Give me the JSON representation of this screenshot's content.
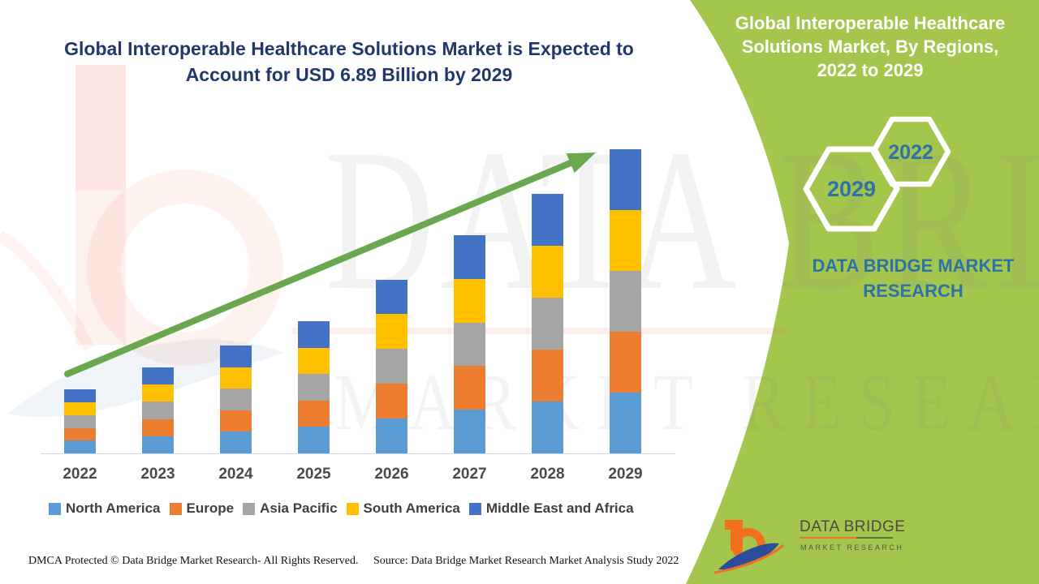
{
  "header": {
    "title_lines": [
      "Global Interoperable Healthcare Solutions Market is Expected to",
      "Account for USD 6.89 Billion by 2029"
    ]
  },
  "right_panel": {
    "title_lines": [
      "Global Interoperable Healthcare",
      "Solutions Market, By Regions,",
      "2022 to 2029"
    ],
    "hexagons": {
      "back_year": "2022",
      "front_year": "2029"
    },
    "brand_text": "DATA BRIDGE MARKET RESEARCH",
    "panel_color": "#a4c64c",
    "hex_text_color": "#2d73a8"
  },
  "watermark": {
    "line1": "DATA BRIDGE",
    "line2": "MARKET RESEARCH"
  },
  "chart_data": {
    "type": "bar",
    "stacked": true,
    "title": "Global Interoperable Healthcare Solutions Market is Expected to Account for USD 6.89 Billion by 2029",
    "unit": "USD Billion",
    "categories": [
      "2022",
      "2023",
      "2024",
      "2025",
      "2026",
      "2027",
      "2028",
      "2029"
    ],
    "series": [
      {
        "name": "North America",
        "color": "#5B9BD5",
        "values": [
          0.29,
          0.39,
          0.49,
          0.6,
          0.79,
          0.99,
          1.18,
          1.38
        ]
      },
      {
        "name": "Europe",
        "color": "#ED7D31",
        "values": [
          0.29,
          0.39,
          0.49,
          0.6,
          0.79,
          0.99,
          1.18,
          1.38
        ]
      },
      {
        "name": "Asia Pacific",
        "color": "#A5A5A5",
        "values": [
          0.29,
          0.39,
          0.49,
          0.6,
          0.79,
          0.99,
          1.18,
          1.38
        ]
      },
      {
        "name": "South America",
        "color": "#FFC000",
        "values": [
          0.29,
          0.39,
          0.49,
          0.6,
          0.79,
          0.99,
          1.18,
          1.38
        ]
      },
      {
        "name": "Middle East and Africa",
        "color": "#4472C4",
        "values": [
          0.29,
          0.39,
          0.49,
          0.6,
          0.79,
          0.99,
          1.18,
          1.38
        ]
      }
    ],
    "estimated_totals": [
      1.47,
      1.97,
      2.45,
      2.98,
      3.95,
      4.94,
      5.9,
      6.89
    ],
    "ylim": [
      0,
      7
    ],
    "y_axis_visible": false,
    "grid": false,
    "legend_position": "bottom",
    "trend_arrow": true,
    "trend_arrow_color": "#6aa84f"
  },
  "footer": {
    "dmca": "DMCA Protected © Data Bridge Market Research- All Rights Reserved.",
    "source": "Source: Data Bridge Market Research Market Analysis Study 2022",
    "logo": {
      "name": "DATA BRIDGE",
      "tagline": "MARKET RESEARCH"
    }
  }
}
